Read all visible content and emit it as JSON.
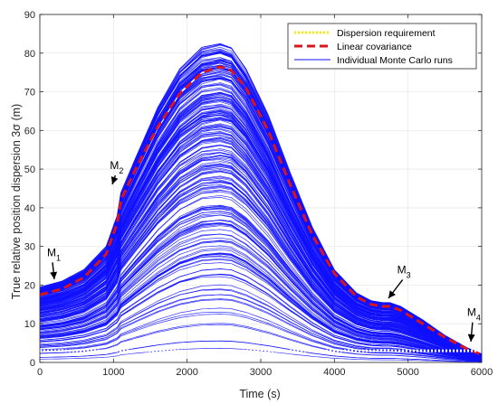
{
  "colors": {
    "background": "#ffffff",
    "runs": "#1010ff",
    "linear_covariance": "#d8141c",
    "dispersion_requirement": "#f0f000",
    "axis": "#262626",
    "grid": "#e6e6e6"
  },
  "chart_data": {
    "type": "line",
    "xlabel": "Time (s)",
    "ylabel": "True relative position dispersion 3σ (m)",
    "xlim": [
      0,
      6000
    ],
    "ylim": [
      0,
      90
    ],
    "xticks": [
      0,
      1000,
      2000,
      3000,
      4000,
      5000,
      6000
    ],
    "yticks": [
      0,
      10,
      20,
      30,
      40,
      50,
      60,
      70,
      80,
      90
    ],
    "grid": true,
    "legend_position": "top-right",
    "legend": [
      {
        "label": "Dispersion requirement",
        "style": "dotted",
        "color": "#f0f000"
      },
      {
        "label": "Linear covariance",
        "style": "dashed",
        "color": "#d8141c"
      },
      {
        "label": "Individual Monte Carlo runs",
        "style": "solid",
        "color": "#1010ff"
      }
    ],
    "series": [
      {
        "name": "Dispersion requirement",
        "x": [
          0,
          6000
        ],
        "y": [
          3,
          3
        ]
      },
      {
        "name": "Linear covariance",
        "x": [
          0,
          300,
          600,
          900,
          1050,
          1100,
          1300,
          1600,
          1900,
          2200,
          2450,
          2600,
          2800,
          3100,
          3400,
          3700,
          4000,
          4300,
          4500,
          4650,
          4750,
          4900,
          5200,
          5500,
          5800,
          6000
        ],
        "y": [
          17.5,
          19,
          22,
          28,
          36,
          42,
          50,
          61,
          69.5,
          75,
          76.5,
          75.5,
          71,
          60,
          46,
          33,
          23,
          17,
          15,
          14.5,
          14.5,
          13.5,
          10,
          6.5,
          3.5,
          2
        ]
      },
      {
        "name": "Individual Monte Carlo runs",
        "representative_envelope": {
          "x": [
            0,
            300,
            600,
            900,
            1050,
            1100,
            1300,
            1600,
            1900,
            2200,
            2450,
            2600,
            2800,
            3100,
            3400,
            3700,
            4000,
            4300,
            4500,
            4650,
            4750,
            4900,
            5200,
            5500,
            5800,
            6000
          ],
          "y_max": [
            19.5,
            21,
            24,
            30,
            38,
            44,
            53,
            66,
            76,
            81.5,
            82.5,
            81.5,
            76,
            64,
            49,
            35,
            24,
            18,
            16,
            15.5,
            15.5,
            14.5,
            11,
            7,
            3.8,
            2.2
          ]
        }
      }
    ],
    "annotations": [
      {
        "label": "M",
        "subscript": "1",
        "x": 0,
        "y": 27.5
      },
      {
        "label": "M",
        "subscript": "2",
        "x": 1050,
        "y": 50
      },
      {
        "label": "M",
        "subscript": "3",
        "x": 4950,
        "y": 23
      },
      {
        "label": "M",
        "subscript": "4",
        "x": 5900,
        "y": 12
      }
    ]
  }
}
